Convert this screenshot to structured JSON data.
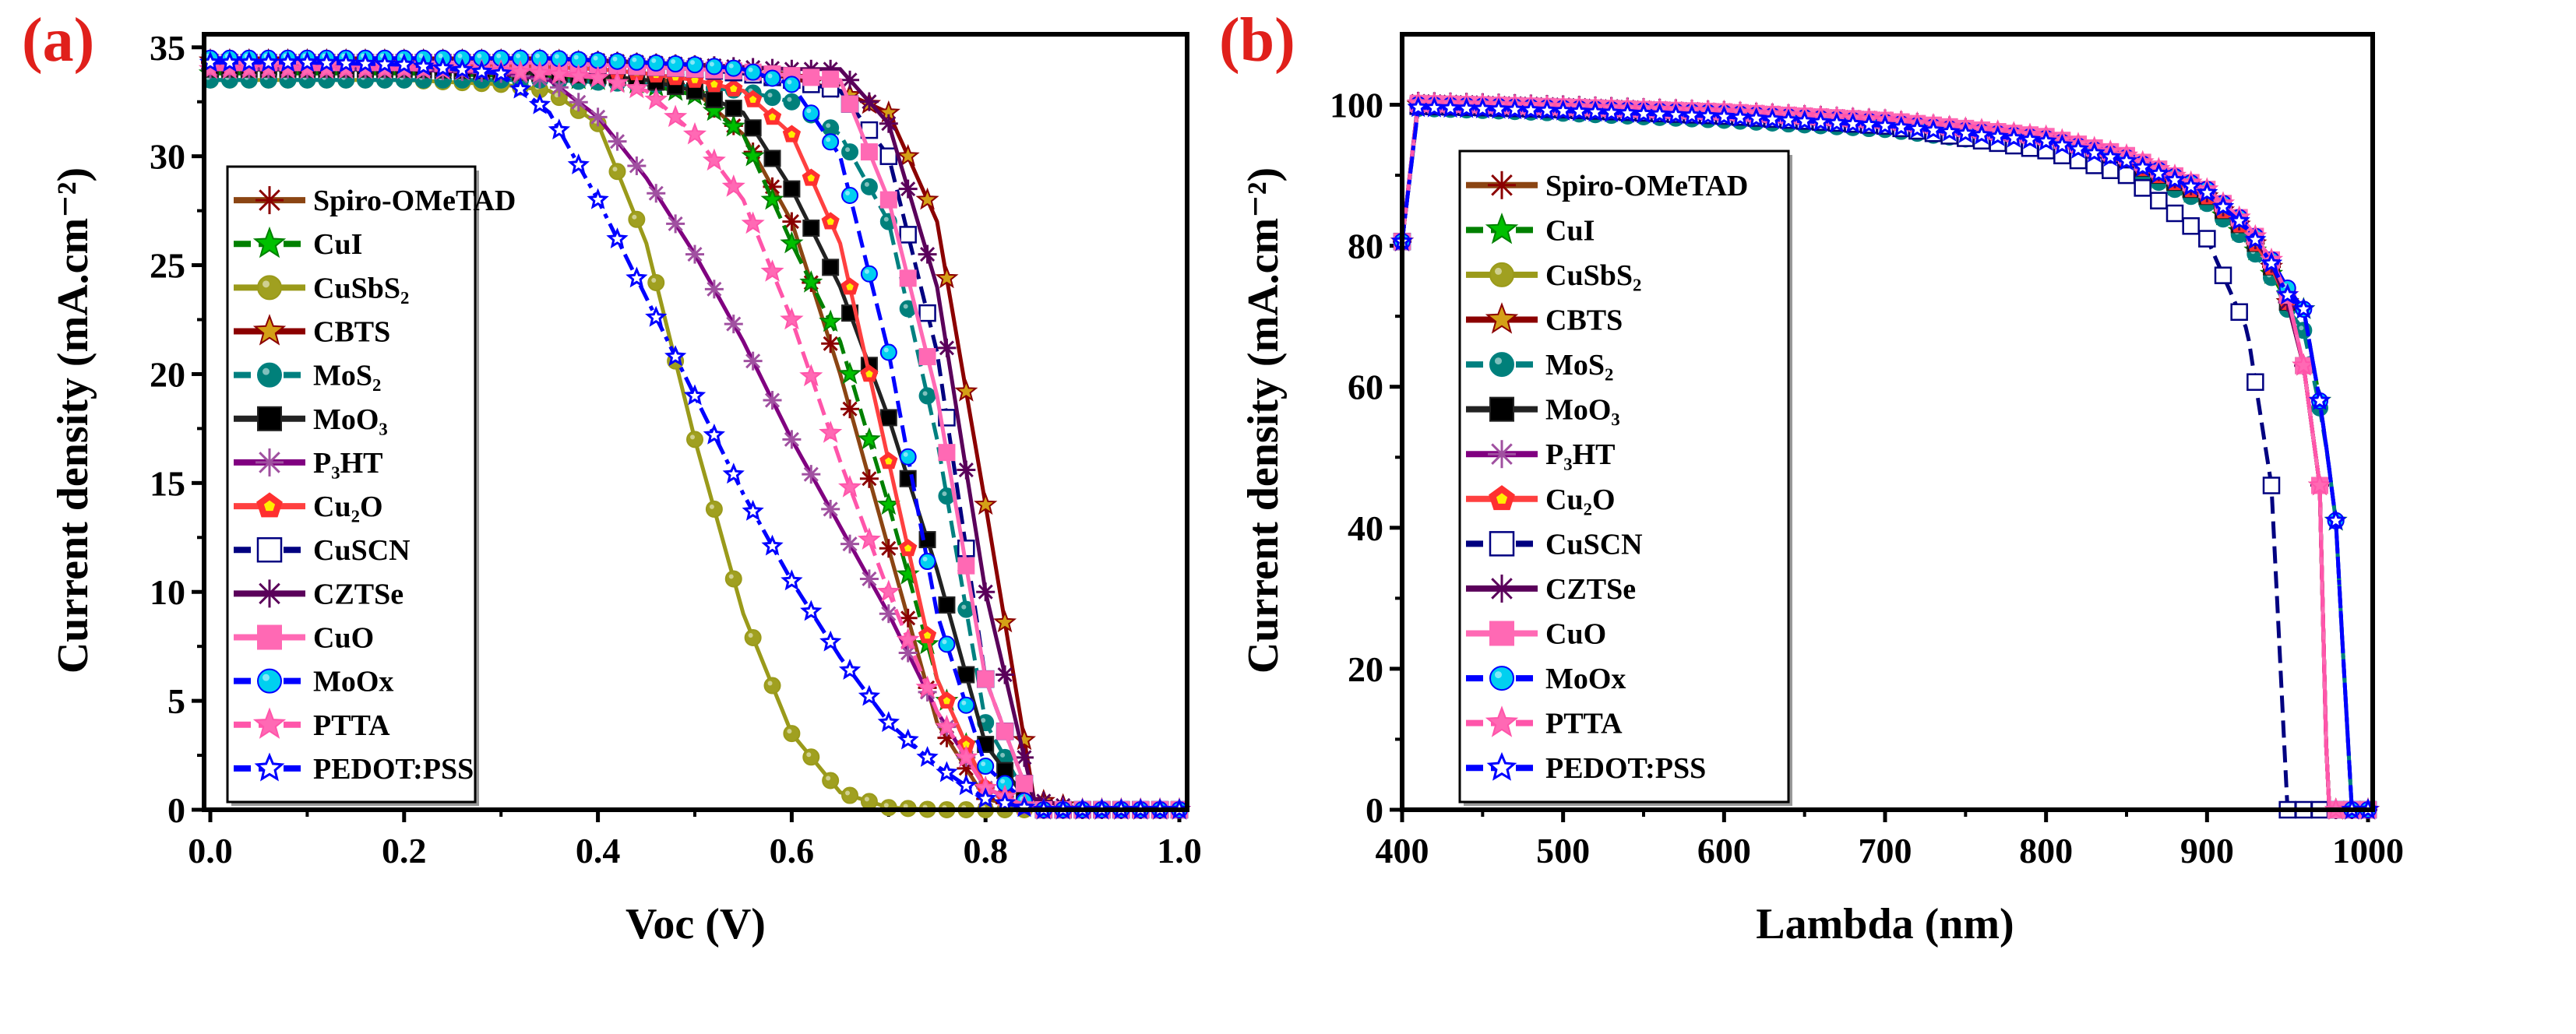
{
  "chart_data": [
    {
      "type": "line",
      "panel_label": "(a)",
      "xlabel": "Voc (V)",
      "ylabel": "Current density (mA.cm⁻²)",
      "xlim": [
        0,
        1.0
      ],
      "ylim": [
        0,
        35.6
      ],
      "xticks": [
        "0.0",
        "0.2",
        "0.4",
        "0.6",
        "0.8",
        "1.0"
      ],
      "xtick_values": [
        0,
        0.2,
        0.4,
        0.6,
        0.8,
        1.0
      ],
      "yticks": [
        "0",
        "5",
        "10",
        "15",
        "20",
        "25",
        "30",
        "35"
      ],
      "ytick_values": [
        0,
        5,
        10,
        15,
        20,
        25,
        30,
        35
      ],
      "legend_position": "left",
      "x": [
        0,
        0.1,
        0.2,
        0.3,
        0.35,
        0.4,
        0.45,
        0.5,
        0.55,
        0.6,
        0.65,
        0.7,
        0.75,
        0.8,
        0.85,
        0.9,
        1.0
      ],
      "series": [
        {
          "name": "Spiro-OMeTAD",
          "color": "#8b4513",
          "marker_color": "#8b0000",
          "marker": "asterisk",
          "dash": "solid",
          "values": [
            34.3,
            34.3,
            34.3,
            34.2,
            34.1,
            34.0,
            33.8,
            33.0,
            31.0,
            27.0,
            20.0,
            12.0,
            4.0,
            0.5,
            0,
            0,
            0
          ]
        },
        {
          "name": "CuI",
          "color": "#008000",
          "marker_color": "#00c000",
          "marker": "star",
          "dash": "dash",
          "values": [
            33.8,
            33.8,
            33.8,
            33.7,
            33.6,
            33.5,
            33.3,
            32.8,
            31.0,
            26.0,
            21.5,
            14.0,
            6.0,
            1.0,
            0,
            0,
            0
          ]
        },
        {
          "name": "CuSbS₂",
          "color": "#9a9a1a",
          "marker_color": "#a0a020",
          "marker": "circle",
          "dash": "solid",
          "values": [
            33.5,
            33.5,
            33.5,
            33.3,
            33.0,
            31.5,
            26.0,
            17.0,
            9.0,
            3.5,
            0.8,
            0.1,
            0,
            0,
            0,
            0,
            0
          ]
        },
        {
          "name": "CBTS",
          "color": "#8b0000",
          "marker_color": "#d4a017",
          "marker": "star",
          "dash": "solid",
          "values": [
            34.4,
            34.4,
            34.4,
            34.4,
            34.4,
            34.3,
            34.2,
            34.1,
            33.9,
            33.6,
            33.0,
            32.0,
            27.0,
            14.0,
            0.5,
            0,
            0
          ]
        },
        {
          "name": "MoS₂",
          "color": "#008080",
          "marker_color": "#00807a",
          "marker": "circle",
          "dash": "dash",
          "values": [
            33.5,
            33.5,
            33.5,
            33.5,
            33.5,
            33.4,
            33.3,
            33.2,
            33.0,
            32.5,
            31.0,
            27.0,
            17.0,
            4.0,
            0,
            0,
            0
          ]
        },
        {
          "name": "MoO₃",
          "color": "#222222",
          "marker_color": "#000000",
          "marker": "square",
          "dash": "solid",
          "values": [
            34.0,
            34.0,
            34.0,
            33.9,
            33.8,
            33.7,
            33.5,
            33.0,
            32.0,
            28.5,
            24.0,
            18.0,
            11.0,
            3.0,
            0,
            0,
            0
          ]
        },
        {
          "name": "P₃HT",
          "color": "#800080",
          "marker_color": "#a050a0",
          "marker": "asterisk",
          "dash": "solid",
          "values": [
            34.0,
            34.0,
            34.0,
            33.8,
            33.5,
            31.8,
            29.0,
            25.5,
            21.5,
            17.0,
            13.0,
            9.0,
            4.5,
            1.0,
            0,
            0,
            0
          ]
        },
        {
          "name": "Cu₂O",
          "color": "#ff4040",
          "marker_color": "#ff3030",
          "marker": "pentagon",
          "dash": "solid",
          "values": [
            34.2,
            34.2,
            34.2,
            34.2,
            34.1,
            34.0,
            33.8,
            33.5,
            33.0,
            31.0,
            26.0,
            16.0,
            6.0,
            1.0,
            0,
            0,
            0
          ]
        },
        {
          "name": "CuSCN",
          "color": "#000080",
          "marker_color": "#000080",
          "marker": "open-square",
          "dash": "dash",
          "values": [
            34.3,
            34.3,
            34.3,
            34.3,
            34.3,
            34.2,
            34.1,
            34.0,
            33.8,
            33.5,
            33.0,
            30.0,
            21.0,
            6.0,
            0,
            0,
            0
          ]
        },
        {
          "name": "CZTSe",
          "color": "#5a005a",
          "marker_color": "#5a005a",
          "marker": "asterisk",
          "dash": "solid",
          "values": [
            34.4,
            34.4,
            34.4,
            34.4,
            34.4,
            34.4,
            34.3,
            34.2,
            34.1,
            34.0,
            34.0,
            31.5,
            24.0,
            10.0,
            0.5,
            0,
            0
          ]
        },
        {
          "name": "CuO",
          "color": "#ff69b4",
          "marker_color": "#ff69b4",
          "marker": "square",
          "dash": "solid",
          "values": [
            34.3,
            34.3,
            34.3,
            34.3,
            34.3,
            34.2,
            34.1,
            34.0,
            33.9,
            33.7,
            33.5,
            28.0,
            19.0,
            6.0,
            0,
            0,
            0
          ]
        },
        {
          "name": "MoOx",
          "color": "#0000ff",
          "marker_color": "#00d0f0",
          "marker": "circle",
          "dash": "dash",
          "values": [
            34.5,
            34.5,
            34.5,
            34.5,
            34.5,
            34.4,
            34.3,
            34.2,
            34.0,
            33.3,
            30.0,
            21.0,
            9.0,
            2.0,
            0,
            0,
            0
          ]
        },
        {
          "name": "PTTA",
          "color": "#ff55aa",
          "marker_color": "#ff69b4",
          "marker": "star",
          "dash": "dash",
          "values": [
            34.0,
            34.0,
            34.0,
            33.9,
            33.8,
            33.6,
            33.0,
            31.0,
            28.0,
            22.5,
            16.0,
            10.0,
            4.5,
            1.0,
            0,
            0,
            0
          ]
        },
        {
          "name": "PEDOT:PSS",
          "color": "#0000ff",
          "marker_color": "#0000ff",
          "marker": "open-star",
          "dash": "dashdot",
          "values": [
            34.3,
            34.3,
            34.2,
            33.8,
            32.0,
            28.0,
            23.5,
            19.0,
            14.5,
            10.5,
            7.0,
            4.0,
            2.0,
            0.5,
            0,
            0,
            0
          ]
        }
      ]
    },
    {
      "type": "line",
      "panel_label": "(b)",
      "xlabel": "Lambda (nm)",
      "ylabel": "Current density (mA.cm⁻²)",
      "xlim": [
        400,
        1000
      ],
      "ylim": [
        0,
        110
      ],
      "xticks": [
        "400",
        "500",
        "600",
        "700",
        "800",
        "900",
        "1000"
      ],
      "xtick_values": [
        400,
        500,
        600,
        700,
        800,
        900,
        1000
      ],
      "yticks": [
        "0",
        "20",
        "40",
        "60",
        "80",
        "100"
      ],
      "ytick_values": [
        0,
        20,
        40,
        60,
        80,
        100
      ],
      "legend_position": "left",
      "x": [
        400,
        410,
        450,
        500,
        600,
        700,
        800,
        850,
        900,
        925,
        940,
        950,
        960,
        970,
        975,
        980,
        985,
        990,
        1000
      ],
      "series": [
        {
          "name": "Spiro-OMeTAD",
          "values": [
            80.6,
            100,
            99.8,
            99.5,
            98.8,
            97.5,
            95,
            92,
            87,
            82,
            77,
            72,
            63,
            46,
            0,
            0,
            0,
            0,
            0
          ]
        },
        {
          "name": "CuI",
          "values": [
            80.6,
            100,
            99.8,
            99.5,
            98.6,
            97.2,
            94.5,
            91.5,
            86.5,
            81,
            76,
            72,
            71,
            58,
            50,
            41,
            20,
            0,
            0
          ]
        },
        {
          "name": "CuSbS₂",
          "values": [
            80.6,
            100,
            99.8,
            99.5,
            98.8,
            97.5,
            95,
            92,
            87,
            82,
            77,
            72,
            63,
            46,
            0,
            0,
            0,
            0,
            0
          ]
        },
        {
          "name": "CBTS",
          "values": [
            80.6,
            100,
            99.8,
            99.5,
            98.8,
            97.5,
            95,
            92,
            87,
            82,
            77,
            72,
            63,
            46,
            0,
            0,
            0,
            0,
            0
          ]
        },
        {
          "name": "MoS₂",
          "values": [
            80.6,
            99.5,
            99.2,
            98.8,
            97.8,
            96.5,
            93.8,
            91,
            86,
            80.5,
            75.5,
            71,
            68,
            57,
            50,
            41,
            20,
            0,
            0
          ]
        },
        {
          "name": "MoO₃",
          "values": [
            80.6,
            100,
            99.8,
            99.5,
            98.8,
            97.5,
            95,
            92,
            87,
            82,
            77,
            72,
            63,
            46,
            0,
            0,
            0,
            0,
            0
          ]
        },
        {
          "name": "P₃HT",
          "values": [
            80.6,
            100.5,
            100.3,
            100,
            99.2,
            98,
            95.5,
            92.5,
            87.5,
            82.5,
            77.5,
            72,
            63,
            46,
            0,
            0,
            0,
            0,
            0
          ]
        },
        {
          "name": "Cu₂O",
          "values": [
            80.6,
            100,
            99.8,
            99.5,
            98.8,
            97.5,
            95,
            92,
            87,
            82,
            77,
            72,
            63,
            46,
            0,
            0,
            0,
            0,
            0
          ]
        },
        {
          "name": "CuSCN",
          "values": [
            80.6,
            99.8,
            99.6,
            99.3,
            98.4,
            97,
            93.5,
            90,
            81,
            68,
            46,
            0,
            0,
            0,
            0,
            0,
            0,
            0,
            0
          ]
        },
        {
          "name": "CZTSe",
          "values": [
            80.6,
            100.5,
            100.3,
            100,
            99.2,
            98,
            95.5,
            92.5,
            87.5,
            82.5,
            77.5,
            72,
            63,
            46,
            0,
            0,
            0,
            0,
            0
          ]
        },
        {
          "name": "CuO",
          "values": [
            80.6,
            100.2,
            100,
            99.7,
            99,
            97.8,
            95.5,
            92.8,
            88,
            83,
            78,
            73,
            63,
            46,
            0,
            0,
            0,
            0,
            0
          ]
        },
        {
          "name": "MoOx",
          "values": [
            80.6,
            100,
            99.8,
            99.5,
            98.8,
            97.5,
            95.2,
            92.5,
            88,
            83,
            78,
            74,
            71,
            58,
            50,
            41,
            20,
            0,
            0
          ]
        },
        {
          "name": "PTTA",
          "values": [
            80.6,
            100.2,
            100,
            99.7,
            99,
            97.8,
            95.5,
            92.8,
            88,
            83,
            78,
            73,
            63,
            46,
            0,
            0,
            0,
            0,
            0
          ]
        },
        {
          "name": "PEDOT:PSS",
          "values": [
            80.6,
            99.6,
            99.4,
            99.1,
            98.3,
            97,
            94.8,
            92,
            87.5,
            82.5,
            77.5,
            73,
            71,
            58,
            50,
            41,
            20,
            0,
            0
          ]
        }
      ]
    }
  ]
}
